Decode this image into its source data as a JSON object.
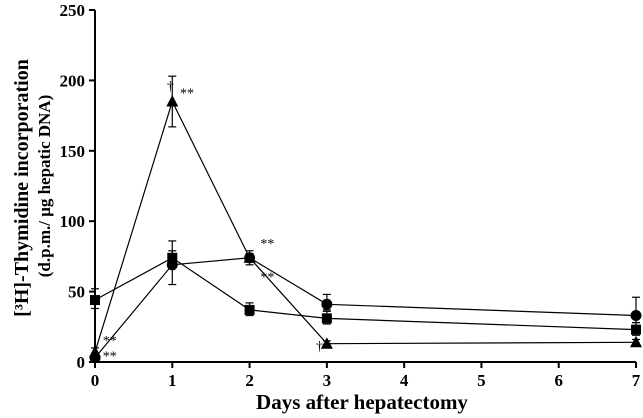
{
  "chart_data": {
    "type": "line",
    "xlabel": "Days after hepatectomy",
    "ylabel_main": "[³H]-Thymidine incorporation",
    "ylabel_sub": "(d.p.m./ μg hepatic DNA)",
    "xlim": [
      0,
      7
    ],
    "ylim": [
      0,
      250
    ],
    "xticks": [
      0,
      1,
      2,
      3,
      4,
      5,
      6,
      7
    ],
    "yticks": [
      0,
      50,
      100,
      150,
      200,
      250
    ],
    "grid": false,
    "legend": "none",
    "series": [
      {
        "marker": "circle",
        "x": [
          0,
          1,
          2,
          3,
          7
        ],
        "values": [
          3,
          69,
          74,
          41,
          33
        ],
        "err_up": [
          0,
          10,
          3,
          7,
          13
        ],
        "err_down": [
          0,
          14,
          3,
          4,
          5
        ]
      },
      {
        "marker": "square",
        "x": [
          0,
          1,
          2,
          3,
          7
        ],
        "values": [
          44,
          74,
          37,
          31,
          23
        ],
        "err_up": [
          8,
          12,
          5,
          5,
          5
        ],
        "err_down": [
          6,
          7,
          4,
          4,
          4
        ]
      },
      {
        "marker": "triangle",
        "x": [
          0,
          1,
          2,
          3,
          7
        ],
        "values": [
          7,
          185,
          74,
          13,
          14
        ],
        "err_up": [
          3,
          18,
          5,
          2,
          2
        ],
        "err_down": [
          3,
          18,
          5,
          2,
          2
        ]
      }
    ],
    "annotations": [
      {
        "text": "†",
        "x": 0.93,
        "y": 193
      },
      {
        "text": "**",
        "x": 1.1,
        "y": 188
      },
      {
        "text": "**",
        "x": 2.14,
        "y": 81
      },
      {
        "text": "**",
        "x": 2.14,
        "y": 57
      },
      {
        "text": "**",
        "x": 0.1,
        "y": 12
      },
      {
        "text": "**",
        "x": 0.1,
        "y": 1
      },
      {
        "text": "†",
        "x": 2.86,
        "y": 8
      }
    ]
  }
}
